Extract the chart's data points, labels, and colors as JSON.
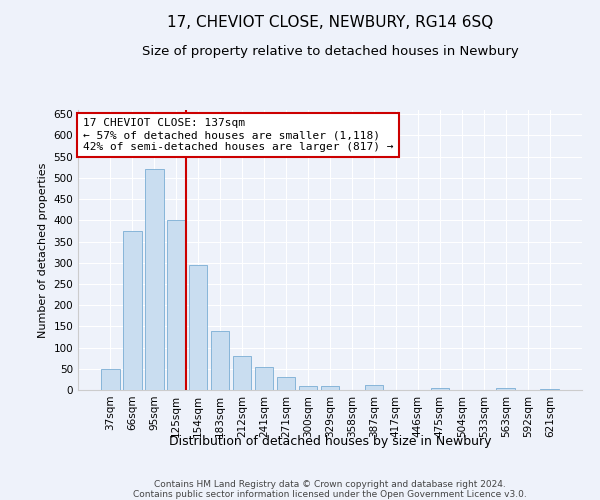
{
  "title": "17, CHEVIOT CLOSE, NEWBURY, RG14 6SQ",
  "subtitle": "Size of property relative to detached houses in Newbury",
  "xlabel": "Distribution of detached houses by size in Newbury",
  "ylabel": "Number of detached properties",
  "categories": [
    "37sqm",
    "66sqm",
    "95sqm",
    "125sqm",
    "154sqm",
    "183sqm",
    "212sqm",
    "241sqm",
    "271sqm",
    "300sqm",
    "329sqm",
    "358sqm",
    "387sqm",
    "417sqm",
    "446sqm",
    "475sqm",
    "504sqm",
    "533sqm",
    "563sqm",
    "592sqm",
    "621sqm"
  ],
  "values": [
    50,
    375,
    520,
    400,
    295,
    140,
    80,
    55,
    30,
    10,
    10,
    0,
    12,
    0,
    0,
    4,
    0,
    0,
    4,
    0,
    2
  ],
  "bar_color": "#c9ddf0",
  "bar_edge_color": "#7aadd4",
  "vline_x_index": 3,
  "vline_color": "#cc0000",
  "annotation_text": "17 CHEVIOT CLOSE: 137sqm\n← 57% of detached houses are smaller (1,118)\n42% of semi-detached houses are larger (817) →",
  "annotation_box_color": "#ffffff",
  "annotation_box_edge_color": "#cc0000",
  "ylim": [
    0,
    660
  ],
  "yticks": [
    0,
    50,
    100,
    150,
    200,
    250,
    300,
    350,
    400,
    450,
    500,
    550,
    600,
    650
  ],
  "footer_line1": "Contains HM Land Registry data © Crown copyright and database right 2024.",
  "footer_line2": "Contains public sector information licensed under the Open Government Licence v3.0.",
  "background_color": "#eef2fa",
  "plot_bg_color": "#eef2fa",
  "title_fontsize": 11,
  "subtitle_fontsize": 9.5,
  "tick_fontsize": 7.5,
  "xlabel_fontsize": 9,
  "ylabel_fontsize": 8,
  "annotation_fontsize": 8,
  "footer_fontsize": 6.5,
  "grid_color": "#ffffff",
  "spine_color": "#cccccc"
}
